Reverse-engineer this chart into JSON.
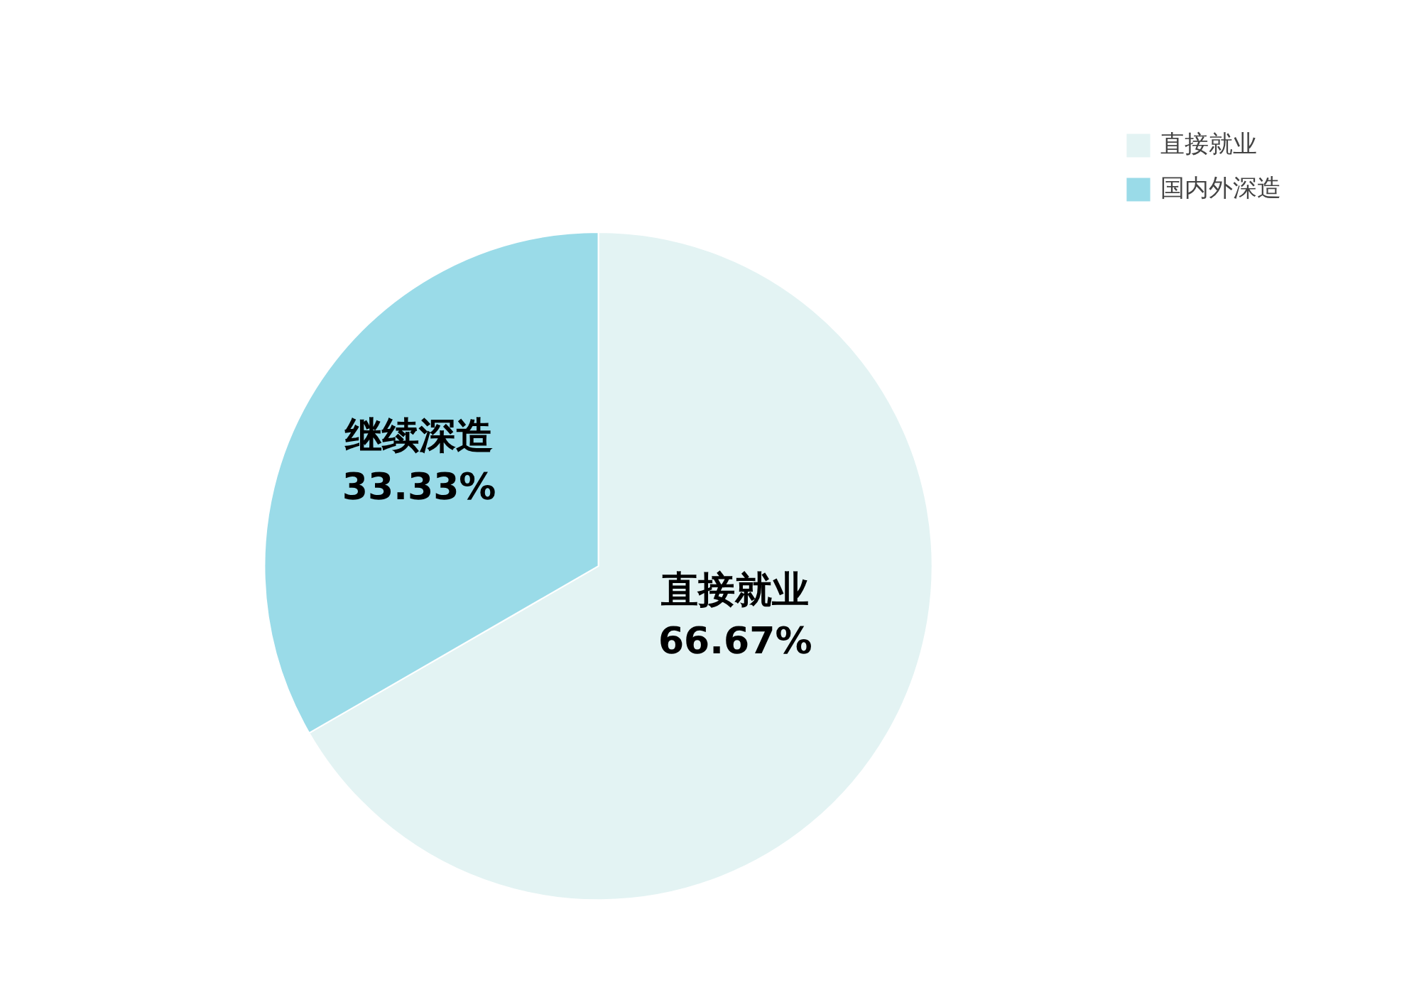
{
  "chart_data": {
    "type": "pie",
    "categories": [
      "直接就业",
      "国内外深造"
    ],
    "values": [
      66.67,
      33.33
    ],
    "colors": [
      "#e3f3f3",
      "#9adbe8"
    ],
    "value_labels": [
      "直接就业\n66.67%",
      "继续深造\n33.33%"
    ],
    "legend": "top right"
  }
}
